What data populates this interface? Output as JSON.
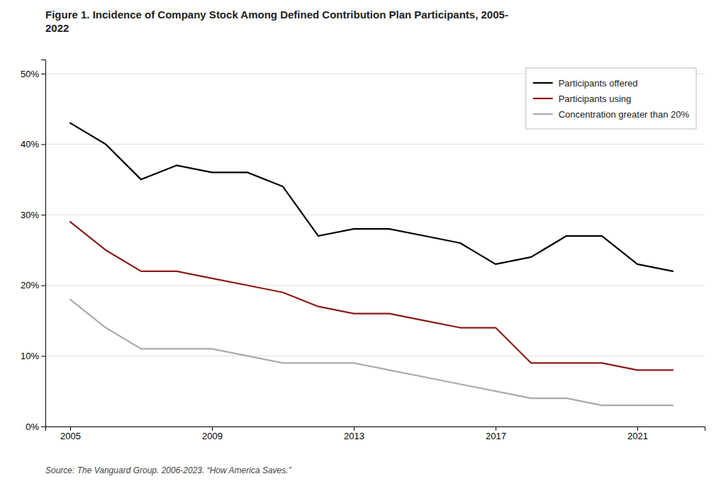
{
  "chart_data": {
    "type": "line",
    "title": "Figure 1. Incidence of Company Stock Among Defined Contribution Plan Participants, 2005-\n2022",
    "annotations": [
      "Source: The Vanguard Group. 2006-2023. “How America Saves.”"
    ],
    "x": [
      2005,
      2006,
      2007,
      2008,
      2009,
      2010,
      2011,
      2012,
      2013,
      2014,
      2015,
      2016,
      2017,
      2018,
      2019,
      2020,
      2021,
      2022
    ],
    "series": [
      {
        "name": "Participants offered",
        "color": "#000000",
        "values": [
          0.43,
          0.4,
          0.35,
          0.37,
          0.36,
          0.36,
          0.34,
          0.27,
          0.28,
          0.28,
          0.27,
          0.26,
          0.23,
          0.24,
          0.27,
          0.27,
          0.23,
          0.22
        ]
      },
      {
        "name": "Participants using",
        "color": "#8B1A1A",
        "values": [
          0.29,
          0.25,
          0.22,
          0.22,
          0.21,
          0.2,
          0.19,
          0.17,
          0.16,
          0.16,
          0.15,
          0.14,
          0.14,
          0.09,
          0.09,
          0.09,
          0.08,
          0.08
        ]
      },
      {
        "name": "Concentration greater than 20%",
        "color": "#aaaaaa",
        "values": [
          0.18,
          0.14,
          0.11,
          0.11,
          0.11,
          0.1,
          0.09,
          0.09,
          0.09,
          0.08,
          0.07,
          0.06,
          0.05,
          0.04,
          0.04,
          0.03,
          0.03,
          0.03
        ]
      }
    ],
    "xlim": [
      2004.3,
      2022.9
    ],
    "xticks": [
      2005,
      2009,
      2013,
      2017,
      2021
    ],
    "ylim": [
      0,
      0.52
    ],
    "yticks": [
      {
        "value": 0.0,
        "label": "0%"
      },
      {
        "value": 0.1,
        "label": "10%"
      },
      {
        "value": 0.2,
        "label": "20%"
      },
      {
        "value": 0.3,
        "label": "30%"
      },
      {
        "value": 0.4,
        "label": "40%"
      },
      {
        "value": 0.5,
        "label": "50%"
      }
    ],
    "grid": "y",
    "legend": "upper right"
  }
}
